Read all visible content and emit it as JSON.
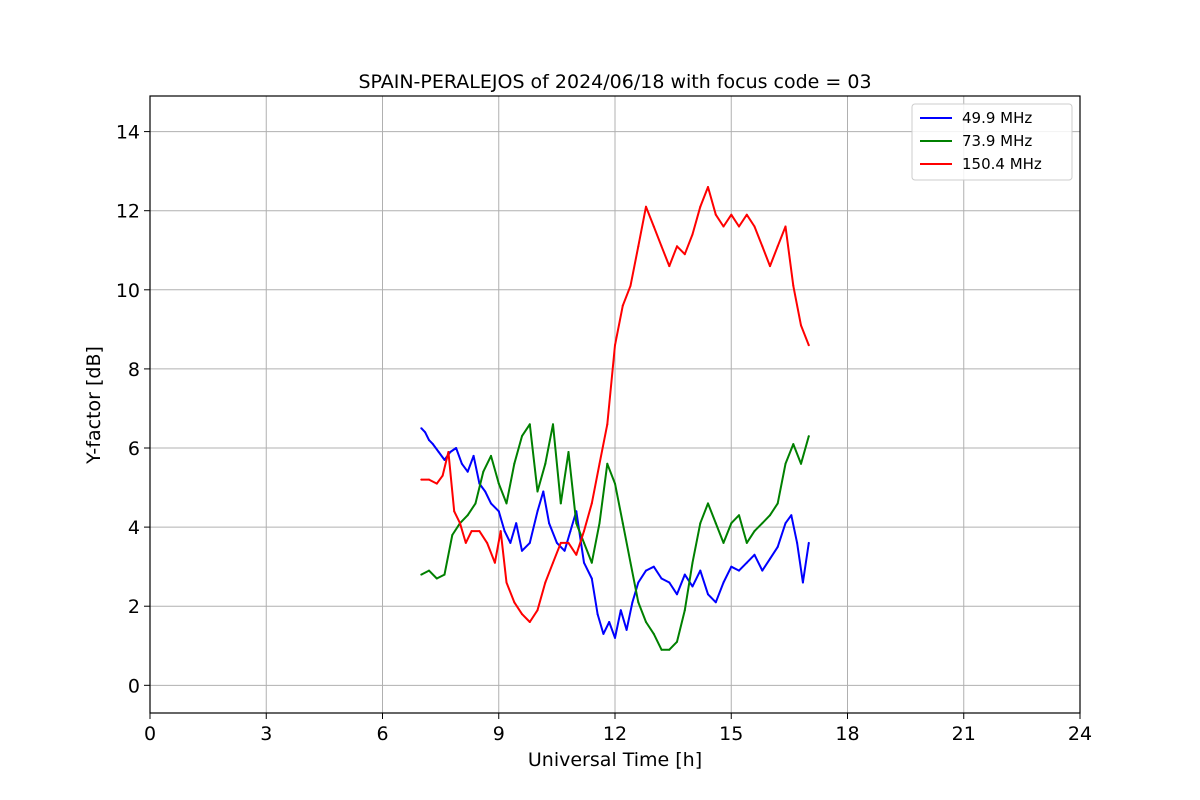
{
  "chart_data": {
    "type": "line",
    "title": "SPAIN-PERALEJOS of 2024/06/18 with focus code = 03",
    "xlabel": "Universal Time [h]",
    "ylabel": "Y-factor [dB]",
    "xlim": [
      0,
      24
    ],
    "ylim": [
      -0.7,
      14.9
    ],
    "xticks": [
      "0",
      "3",
      "6",
      "9",
      "12",
      "15",
      "18",
      "21",
      "24"
    ],
    "yticks": [
      "0",
      "2",
      "4",
      "6",
      "8",
      "10",
      "12",
      "14"
    ],
    "grid": true,
    "legend_position": "top-right",
    "series": [
      {
        "name": "  49.9 MHz",
        "color": "#0000ff",
        "x": [
          7.0,
          7.1,
          7.2,
          7.3,
          7.45,
          7.6,
          7.75,
          7.9,
          8.05,
          8.2,
          8.35,
          8.5,
          8.65,
          8.8,
          9.0,
          9.15,
          9.3,
          9.45,
          9.6,
          9.8,
          10.0,
          10.15,
          10.3,
          10.5,
          10.7,
          10.85,
          11.0,
          11.2,
          11.4,
          11.55,
          11.7,
          11.85,
          12.0,
          12.15,
          12.3,
          12.45,
          12.6,
          12.8,
          13.0,
          13.2,
          13.4,
          13.6,
          13.8,
          14.0,
          14.2,
          14.4,
          14.6,
          14.8,
          15.0,
          15.2,
          15.4,
          15.6,
          15.8,
          16.0,
          16.2,
          16.4,
          16.55,
          16.7,
          16.85,
          17.0
        ],
        "y": [
          6.5,
          6.4,
          6.2,
          6.1,
          5.9,
          5.7,
          5.9,
          6.0,
          5.6,
          5.4,
          5.8,
          5.1,
          4.9,
          4.6,
          4.4,
          3.9,
          3.6,
          4.1,
          3.4,
          3.6,
          4.4,
          4.9,
          4.1,
          3.6,
          3.4,
          3.9,
          4.4,
          3.1,
          2.7,
          1.8,
          1.3,
          1.6,
          1.2,
          1.9,
          1.4,
          2.1,
          2.6,
          2.9,
          3.0,
          2.7,
          2.6,
          2.3,
          2.8,
          2.5,
          2.9,
          2.3,
          2.1,
          2.6,
          3.0,
          2.9,
          3.1,
          3.3,
          2.9,
          3.2,
          3.5,
          4.1,
          4.3,
          3.6,
          2.6,
          3.6
        ]
      },
      {
        "name": "  73.9 MHz",
        "color": "#008000",
        "x": [
          7.0,
          7.2,
          7.4,
          7.6,
          7.8,
          8.0,
          8.2,
          8.4,
          8.6,
          8.8,
          9.0,
          9.2,
          9.4,
          9.6,
          9.8,
          10.0,
          10.2,
          10.4,
          10.6,
          10.8,
          11.0,
          11.2,
          11.4,
          11.6,
          11.8,
          12.0,
          12.2,
          12.4,
          12.6,
          12.8,
          13.0,
          13.2,
          13.4,
          13.6,
          13.8,
          14.0,
          14.2,
          14.4,
          14.6,
          14.8,
          15.0,
          15.2,
          15.4,
          15.6,
          15.8,
          16.0,
          16.2,
          16.4,
          16.6,
          16.8,
          17.0
        ],
        "y": [
          2.8,
          2.9,
          2.7,
          2.8,
          3.8,
          4.1,
          4.3,
          4.6,
          5.4,
          5.8,
          5.1,
          4.6,
          5.6,
          6.3,
          6.6,
          4.9,
          5.6,
          6.6,
          4.6,
          5.9,
          4.1,
          3.6,
          3.1,
          4.1,
          5.6,
          5.1,
          4.1,
          3.1,
          2.1,
          1.6,
          1.3,
          0.9,
          0.9,
          1.1,
          1.9,
          3.1,
          4.1,
          4.6,
          4.1,
          3.6,
          4.1,
          4.3,
          3.6,
          3.9,
          4.1,
          4.3,
          4.6,
          5.6,
          6.1,
          5.6,
          6.3
        ]
      },
      {
        "name": "  150.4 MHz",
        "color": "#ff0000",
        "x": [
          7.0,
          7.2,
          7.4,
          7.55,
          7.7,
          7.85,
          8.0,
          8.15,
          8.3,
          8.5,
          8.7,
          8.9,
          9.05,
          9.2,
          9.4,
          9.6,
          9.8,
          10.0,
          10.2,
          10.4,
          10.6,
          10.8,
          11.0,
          11.2,
          11.4,
          11.6,
          11.8,
          12.0,
          12.2,
          12.4,
          12.6,
          12.8,
          13.0,
          13.2,
          13.4,
          13.6,
          13.8,
          14.0,
          14.2,
          14.4,
          14.6,
          14.8,
          15.0,
          15.2,
          15.4,
          15.6,
          15.8,
          16.0,
          16.2,
          16.4,
          16.6,
          16.8,
          17.0
        ],
        "y": [
          5.2,
          5.2,
          5.1,
          5.3,
          5.9,
          4.4,
          4.1,
          3.6,
          3.9,
          3.9,
          3.6,
          3.1,
          3.9,
          2.6,
          2.1,
          1.8,
          1.6,
          1.9,
          2.6,
          3.1,
          3.6,
          3.6,
          3.3,
          3.9,
          4.6,
          5.6,
          6.6,
          8.6,
          9.6,
          10.1,
          11.1,
          12.1,
          11.6,
          11.1,
          10.6,
          11.1,
          10.9,
          11.4,
          12.1,
          12.6,
          11.9,
          11.6,
          11.9,
          11.6,
          11.9,
          11.6,
          11.1,
          10.6,
          11.1,
          11.6,
          10.1,
          9.1,
          8.6
        ]
      }
    ]
  }
}
